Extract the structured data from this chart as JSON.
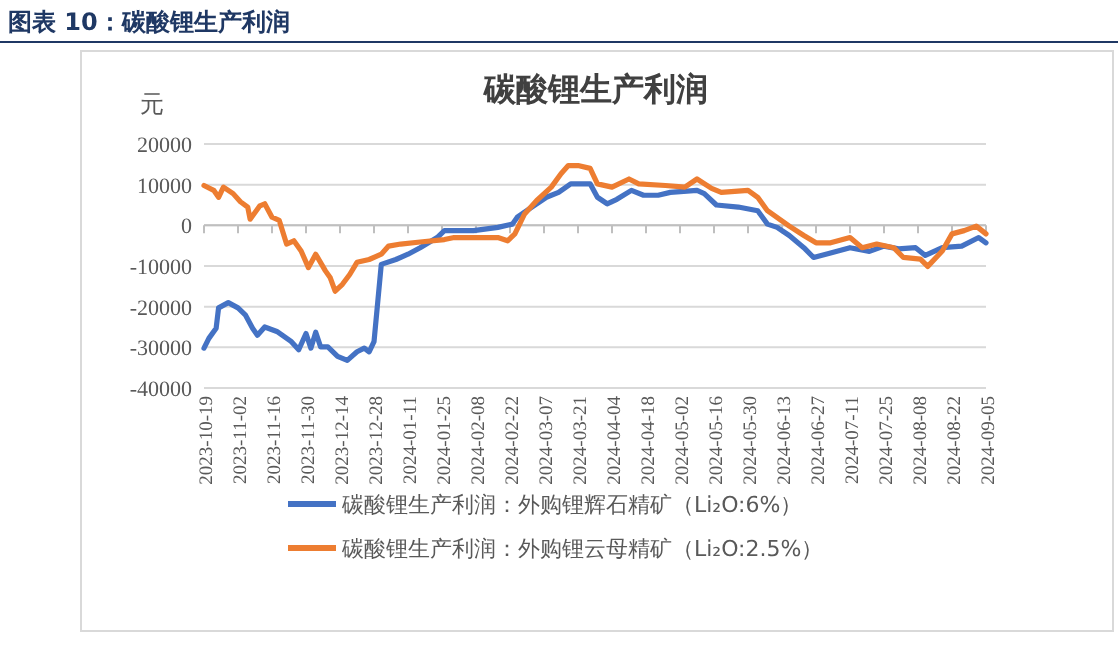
{
  "chart_data": {
    "type": "line",
    "subtitle": "图表 10：碳酸锂生产利润",
    "title": "碳酸锂生产利润",
    "ylabel": "元",
    "xlim": [
      "2023-10-19",
      "2024-09-05"
    ],
    "xticks": [
      "2023-10-19",
      "2023-11-02",
      "2023-11-16",
      "2023-11-30",
      "2023-12-14",
      "2023-12-28",
      "2024-01-11",
      "2024-01-25",
      "2024-02-08",
      "2024-02-22",
      "2024-03-07",
      "2024-03-21",
      "2024-04-04",
      "2024-04-18",
      "2024-05-02",
      "2024-05-16",
      "2024-05-30",
      "2024-06-13",
      "2024-06-27",
      "2024-07-11",
      "2024-07-25",
      "2024-08-08",
      "2024-08-22",
      "2024-09-05"
    ],
    "ylim": [
      -40000,
      20000
    ],
    "yticks": [
      -40000,
      -30000,
      -20000,
      -10000,
      0,
      10000,
      20000
    ],
    "grid": "y",
    "legend": "bottom",
    "marker": "none",
    "line_style": "solid",
    "series": [
      {
        "name": "碳酸锂生产利润：外购锂辉石精矿（Li₂O:6%）",
        "color": "#4472c4",
        "x": [
          "2023-10-19",
          "2023-10-21",
          "2023-10-24",
          "2023-10-25",
          "2023-10-29",
          "2023-11-02",
          "2023-11-05",
          "2023-11-08",
          "2023-11-10",
          "2023-11-13",
          "2023-11-18",
          "2023-11-24",
          "2023-11-27",
          "2023-11-30",
          "2023-12-02",
          "2023-12-04",
          "2023-12-06",
          "2023-12-09",
          "2023-12-13",
          "2023-12-17",
          "2023-12-21",
          "2023-12-24",
          "2023-12-26",
          "2023-12-28",
          "2023-12-31",
          "2024-01-06",
          "2024-01-11",
          "2024-01-16",
          "2024-01-23",
          "2024-01-26",
          "2024-02-07",
          "2024-02-17",
          "2024-02-23",
          "2024-02-25",
          "2024-03-02",
          "2024-03-08",
          "2024-03-13",
          "2024-03-18",
          "2024-03-26",
          "2024-03-29",
          "2024-04-02",
          "2024-04-06",
          "2024-04-12",
          "2024-04-17",
          "2024-04-23",
          "2024-04-28",
          "2024-05-09",
          "2024-05-12",
          "2024-05-17",
          "2024-05-26",
          "2024-06-03",
          "2024-06-07",
          "2024-06-11",
          "2024-06-16",
          "2024-06-22",
          "2024-06-26",
          "2024-07-03",
          "2024-07-11",
          "2024-07-19",
          "2024-07-25",
          "2024-07-31",
          "2024-08-07",
          "2024-08-11",
          "2024-08-18",
          "2024-08-26",
          "2024-09-02",
          "2024-09-05"
        ],
        "values": [
          -30200,
          -27800,
          -25300,
          -20300,
          -19000,
          -20300,
          -22000,
          -25300,
          -27000,
          -25000,
          -26100,
          -28600,
          -30600,
          -26600,
          -30200,
          -26300,
          -29900,
          -29900,
          -32200,
          -33200,
          -31100,
          -30200,
          -31100,
          -28600,
          -9600,
          -8400,
          -7100,
          -5500,
          -3000,
          -1300,
          -1300,
          -500,
          300,
          2000,
          4500,
          6900,
          8100,
          10200,
          10200,
          6900,
          5300,
          6400,
          8600,
          7400,
          7400,
          8100,
          8600,
          7800,
          5000,
          4500,
          3600,
          300,
          -500,
          -2500,
          -5500,
          -7900,
          -6800,
          -5500,
          -6400,
          -5100,
          -5800,
          -5500,
          -7400,
          -5500,
          -5100,
          -3000,
          -4300
        ]
      },
      {
        "name": "碳酸锂生产利润：外购锂云母精矿（Li₂O:2.5%）",
        "color": "#ed7d31",
        "x": [
          "2023-10-19",
          "2023-10-23",
          "2023-10-25",
          "2023-10-27",
          "2023-10-31",
          "2023-11-03",
          "2023-11-06",
          "2023-11-07",
          "2023-11-11",
          "2023-11-13",
          "2023-11-16",
          "2023-11-19",
          "2023-11-22",
          "2023-11-25",
          "2023-11-28",
          "2023-12-01",
          "2023-12-04",
          "2023-12-08",
          "2023-12-10",
          "2023-12-12",
          "2023-12-15",
          "2023-12-18",
          "2023-12-21",
          "2023-12-26",
          "2023-12-31",
          "2024-01-03",
          "2024-01-08",
          "2024-01-16",
          "2024-01-26",
          "2024-01-30",
          "2024-02-17",
          "2024-02-21",
          "2024-02-24",
          "2024-02-28",
          "2024-03-04",
          "2024-03-10",
          "2024-03-14",
          "2024-03-17",
          "2024-03-21",
          "2024-03-26",
          "2024-03-29",
          "2024-04-04",
          "2024-04-11",
          "2024-04-15",
          "2024-04-26",
          "2024-05-04",
          "2024-05-09",
          "2024-05-15",
          "2024-05-19",
          "2024-05-30",
          "2024-06-03",
          "2024-06-07",
          "2024-06-16",
          "2024-06-22",
          "2024-06-27",
          "2024-07-03",
          "2024-07-11",
          "2024-07-16",
          "2024-07-22",
          "2024-07-29",
          "2024-08-02",
          "2024-08-09",
          "2024-08-12",
          "2024-08-18",
          "2024-08-22",
          "2024-08-27",
          "2024-09-01",
          "2024-09-05"
        ],
        "values": [
          9800,
          8600,
          6900,
          9400,
          7800,
          5800,
          4500,
          1500,
          4800,
          5300,
          2000,
          1200,
          -4600,
          -3800,
          -6300,
          -10400,
          -7100,
          -11200,
          -12900,
          -16200,
          -14500,
          -12100,
          -9100,
          -8400,
          -7100,
          -5100,
          -4600,
          -4100,
          -3500,
          -3000,
          -3000,
          -3800,
          -2100,
          2800,
          6100,
          9400,
          12700,
          14700,
          14700,
          14000,
          10200,
          9400,
          11400,
          10200,
          9800,
          9400,
          11400,
          9100,
          8100,
          8600,
          6900,
          3600,
          -200,
          -2500,
          -4300,
          -4300,
          -3000,
          -5500,
          -4600,
          -5500,
          -7900,
          -8300,
          -10100,
          -6300,
          -2100,
          -1300,
          -200,
          -2100
        ]
      }
    ]
  }
}
